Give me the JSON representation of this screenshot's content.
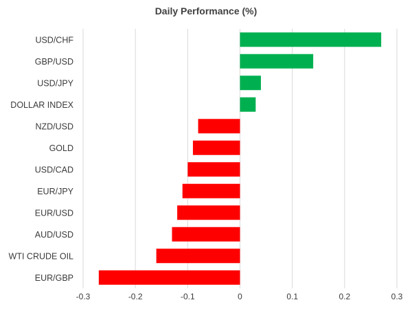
{
  "chart_data": {
    "type": "bar",
    "orientation": "horizontal",
    "title": "Daily Performance (%)",
    "xlabel": "",
    "ylabel": "",
    "xlim": [
      -0.3,
      0.3
    ],
    "xticks": [
      -0.3,
      -0.2,
      -0.1,
      0,
      0.1,
      0.2,
      0.3
    ],
    "xtick_labels": [
      "-0.3",
      "-0.2",
      "-0.1",
      "0",
      "0.1",
      "0.2",
      "0.3"
    ],
    "grid": "vertical",
    "categories": [
      "USD/CHF",
      "GBP/USD",
      "USD/JPY",
      "DOLLAR INDEX",
      "NZD/USD",
      "GOLD",
      "USD/CAD",
      "EUR/JPY",
      "EUR/USD",
      "AUD/USD",
      "WTI CRUDE OIL",
      "EUR/GBP"
    ],
    "values": [
      0.27,
      0.14,
      0.04,
      0.03,
      -0.08,
      -0.09,
      -0.1,
      -0.11,
      -0.12,
      -0.13,
      -0.16,
      -0.27
    ],
    "colors": {
      "positive": "#00b050",
      "negative": "#ff0000",
      "grid": "#d9d9d9",
      "text": "#3a3a3a"
    }
  }
}
